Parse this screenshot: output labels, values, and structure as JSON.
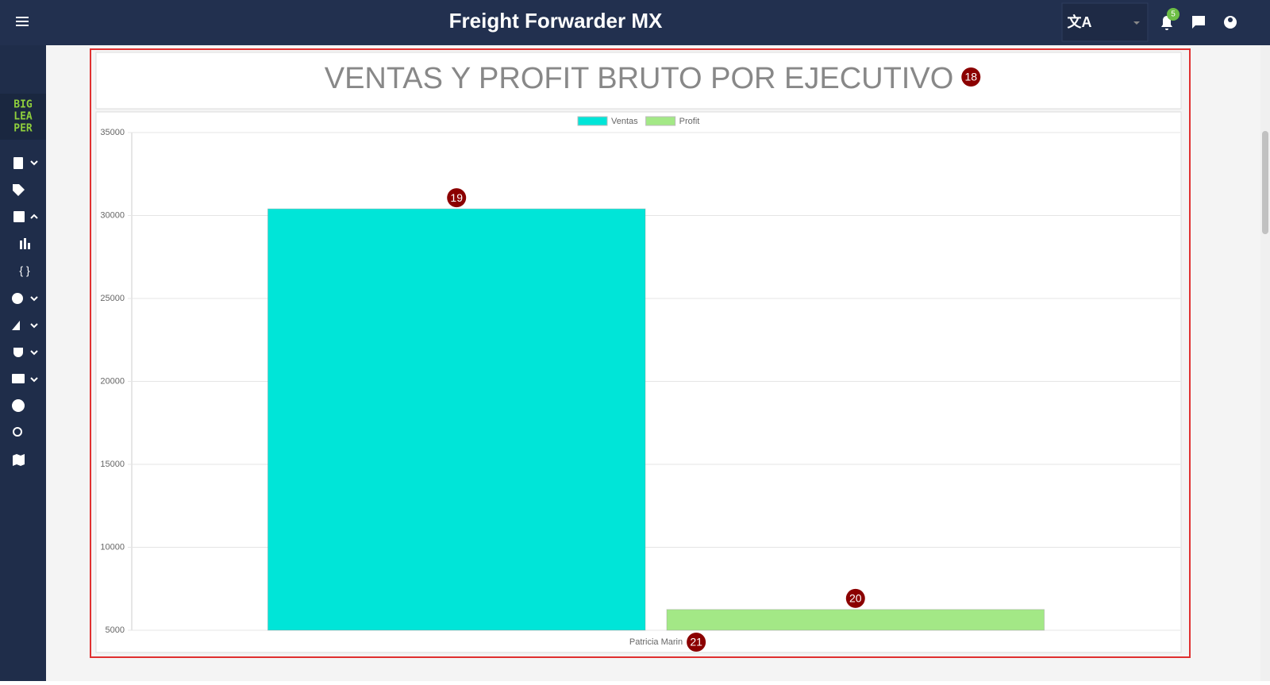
{
  "header": {
    "title": "Freight Forwarder MX",
    "notification_count": "5"
  },
  "sidebar": {
    "logo": [
      "BIG",
      "LEA",
      "PER"
    ]
  },
  "annotations": [
    "18",
    "19",
    "20",
    "21"
  ],
  "chart_data": {
    "type": "bar",
    "title": "VENTAS Y PROFIT BRUTO POR EJECUTIVO",
    "categories": [
      "Patricia Marin"
    ],
    "series": [
      {
        "name": "Ventas",
        "color": "#00e5d8",
        "values": [
          30400
        ]
      },
      {
        "name": "Profit",
        "color": "#a3e886",
        "values": [
          6250
        ]
      }
    ],
    "ylim": [
      5000,
      35000
    ],
    "yticks": [
      5000,
      10000,
      15000,
      20000,
      25000,
      30000,
      35000
    ],
    "grid": true,
    "legend": "top"
  }
}
